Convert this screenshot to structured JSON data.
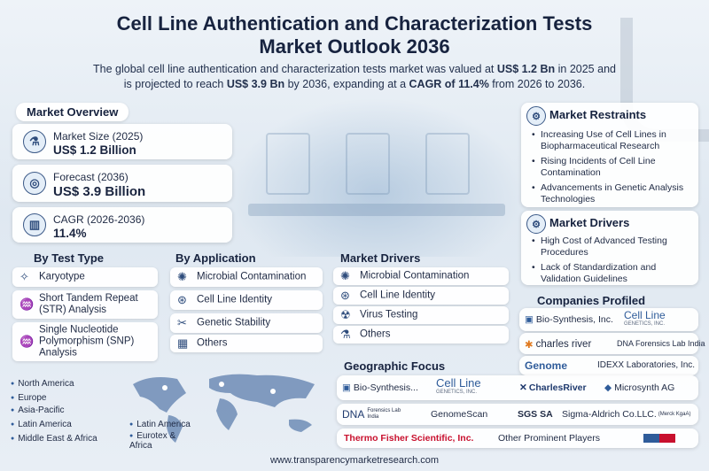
{
  "header": {
    "title_line1": "Cell Line Authentication and Characterization Tests",
    "title_line2": "Market Outlook 2036",
    "sub_1": "The global cell line authentication and characterization tests market was valued at ",
    "sub_2": "US$ 1.2 Bn",
    "sub_3": " in 2025 and",
    "sub_4": "is projected to reach ",
    "sub_5": "US$ 3.9 Bn",
    "sub_6": " by 2036, expanding at a ",
    "sub_7": "CAGR of 11.4%",
    "sub_8": " from 2026 to 2036."
  },
  "overview": {
    "heading": "Market Overview",
    "items": [
      {
        "label": "Market Size (2025)",
        "value": "US$ 1.2 Billion",
        "icon": "flask-icon"
      },
      {
        "label": "Forecast (2036)",
        "value": "US$ 3.9 Billion",
        "icon": "target-icon"
      },
      {
        "label": "CAGR (2026-2036)",
        "value": "11.4%",
        "icon": "bar-chart-icon"
      }
    ]
  },
  "restraints": {
    "heading": "Market Restraints",
    "items": [
      "Increasing Use of Cell Lines in Biopharmaceutical Research",
      "Rising Incidents of Cell Line Contamination",
      "Advancements in Genetic Analysis Technologies"
    ]
  },
  "drivers_right": {
    "heading": "Market Drivers",
    "items": [
      "High Cost of Advanced Testing Procedures",
      "Lack of Standardization and Validation Guidelines"
    ]
  },
  "test_type": {
    "heading": "By Test Type",
    "items": [
      "Karyotype",
      "Short Tandem Repeat (STR) Analysis",
      "Single Nucleotide Polymorphism (SNP) Analysis"
    ]
  },
  "application": {
    "heading": "By Application",
    "items": [
      "Microbial Contamination",
      "Cell Line Identity",
      "Genetic Stability",
      "Others"
    ]
  },
  "drivers_mid": {
    "heading": "Market Drivers",
    "items": [
      "Microbial Contamination",
      "Cell Line Identity",
      "Virus Testing",
      "Others"
    ]
  },
  "regions": {
    "items": [
      "North America",
      "Europe",
      "Asia-Pacific",
      "Latin America",
      "Middle East & Africa"
    ],
    "map_labels": [
      "Latin America",
      "Eurotex & Africa"
    ]
  },
  "companies": {
    "heading": "Companies Profiled",
    "logos": [
      "Bio-Synthesis, Inc.",
      "Cell Line",
      "GENETICS, INC.",
      "charles river",
      "DNA Forensics Lab India",
      "Genome",
      "IDEXX Laboratories, Inc."
    ]
  },
  "geo": {
    "heading": "Geographic Focus",
    "logos": [
      "Bio-Synthesis...",
      "Cell Line",
      "GENETICS, INC.",
      "CharlesRiver",
      "Microsynth AG",
      "DNA",
      "Forensics Lab India",
      "GenomeScan",
      "SGS SA",
      "Sigma-Aldrich Co.LLC.",
      "(Merck KgaA)",
      "Thermo Fisher Scientific, Inc.",
      "Other Prominent Players"
    ]
  },
  "footer": {
    "url": "www.transparencymarketresearch.com"
  },
  "colors": {
    "navy": "#17233f",
    "accent": "#2f5c9a",
    "thermo_red": "#c8102e"
  }
}
